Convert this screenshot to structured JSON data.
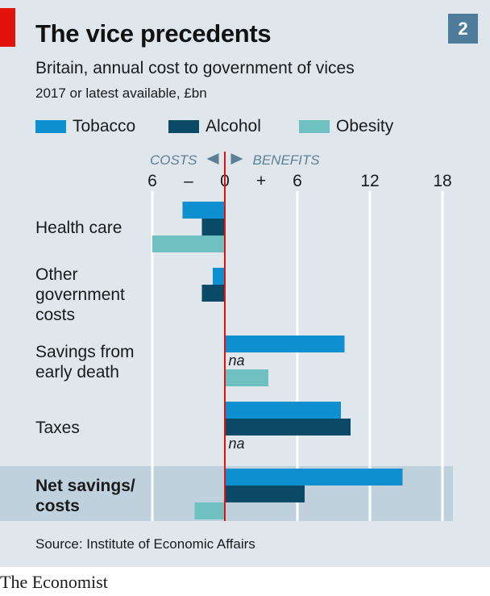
{
  "header": {
    "title": "The vice precedents",
    "chart_number": "2",
    "subtitle": "Britain, annual cost to government of vices",
    "unit_note": "2017 or latest available, £bn"
  },
  "legend": [
    {
      "label": "Tobacco",
      "color": "#0d8fd0"
    },
    {
      "label": "Alcohol",
      "color": "#0b4a67"
    },
    {
      "label": "Obesity",
      "color": "#6fc0c0"
    }
  ],
  "chart_data": {
    "type": "bar",
    "orientation": "horizontal",
    "title": "The vice precedents",
    "subtitle": "Britain, annual cost to government of vices",
    "xlabel": "2017 or latest available, £bn",
    "xlim": [
      -6,
      18
    ],
    "x_ticks": [
      {
        "value": -6,
        "label": "6"
      },
      {
        "value": -3,
        "label": "–"
      },
      {
        "value": 0,
        "label": "0"
      },
      {
        "value": 3,
        "label": "+"
      },
      {
        "value": 6,
        "label": "6"
      },
      {
        "value": 12,
        "label": "12"
      },
      {
        "value": 18,
        "label": "18"
      }
    ],
    "gridlines": [
      -6,
      6,
      12,
      18
    ],
    "direction_labels": {
      "negative": "COSTS",
      "positive": "BENEFITS"
    },
    "categories": [
      "Health care",
      "Other government costs",
      "Savings from early death",
      "Taxes",
      "Net savings/ costs"
    ],
    "category_lines": [
      [
        "Health care"
      ],
      [
        "Other",
        "government",
        "costs"
      ],
      [
        "Savings from",
        "early death"
      ],
      [
        "Taxes"
      ],
      [
        "Net savings/",
        "costs"
      ]
    ],
    "highlight_category": "Net savings/ costs",
    "na_label": "na",
    "series": [
      {
        "name": "Tobacco",
        "color": "#0d8fd0",
        "values": [
          -3.5,
          -1.0,
          9.9,
          9.6,
          14.7
        ]
      },
      {
        "name": "Alcohol",
        "color": "#0b4a67",
        "values": [
          -1.9,
          -1.9,
          null,
          10.4,
          6.6
        ]
      },
      {
        "name": "Obesity",
        "color": "#6fc0c0",
        "values": [
          -6.0,
          null,
          3.6,
          null,
          -2.5
        ]
      }
    ]
  },
  "footer": {
    "source": "Source: Institute of Economic Affairs",
    "brand": "The Economist"
  }
}
